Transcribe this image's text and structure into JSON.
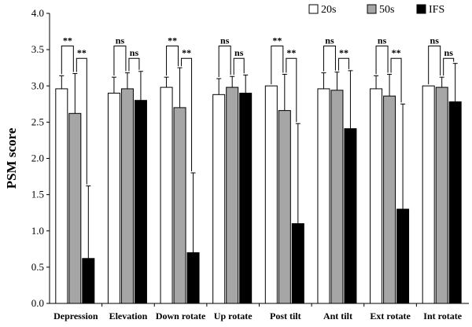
{
  "chart_data": {
    "type": "bar",
    "title": "",
    "xlabel": "",
    "ylabel": "PSM score",
    "ylim": [
      0,
      4.0
    ],
    "yticks": [
      "0.0",
      "0.5",
      "1.0",
      "1.5",
      "2.0",
      "2.5",
      "3.0",
      "3.5",
      "4.0"
    ],
    "grid": false,
    "legend_position": "top-right",
    "categories": [
      "Depression",
      "Elevation",
      "Down rotate",
      "Up rotate",
      "Post tilt",
      "Ant tilt",
      "Ext rotate",
      "Int rotate"
    ],
    "series": [
      {
        "name": "20s",
        "color": "#ffffff",
        "values": [
          2.96,
          2.9,
          2.98,
          2.88,
          3.0,
          2.96,
          2.96,
          3.0
        ],
        "errors": [
          0.18,
          0.22,
          0.14,
          0.22,
          0.0,
          0.22,
          0.18,
          0.0
        ]
      },
      {
        "name": "50s",
        "color": "#a6a6a6",
        "values": [
          2.62,
          2.96,
          2.7,
          2.98,
          2.66,
          2.94,
          2.86,
          2.98
        ],
        "errors": [
          0.55,
          0.22,
          0.55,
          0.15,
          0.5,
          0.25,
          0.3,
          0.14
        ]
      },
      {
        "name": "IFS",
        "color": "#000000",
        "values": [
          0.62,
          2.8,
          0.7,
          2.9,
          1.1,
          2.41,
          1.3,
          2.78
        ],
        "errors": [
          1.0,
          0.4,
          1.1,
          0.25,
          1.38,
          0.8,
          1.45,
          0.53
        ]
      }
    ],
    "significance": [
      [
        "**",
        "**"
      ],
      [
        "ns",
        "ns"
      ],
      [
        "**",
        "**"
      ],
      [
        "ns",
        "ns"
      ],
      [
        "**",
        "**"
      ],
      [
        "ns",
        "**"
      ],
      [
        "ns",
        "**"
      ],
      [
        "ns",
        "ns"
      ]
    ]
  }
}
